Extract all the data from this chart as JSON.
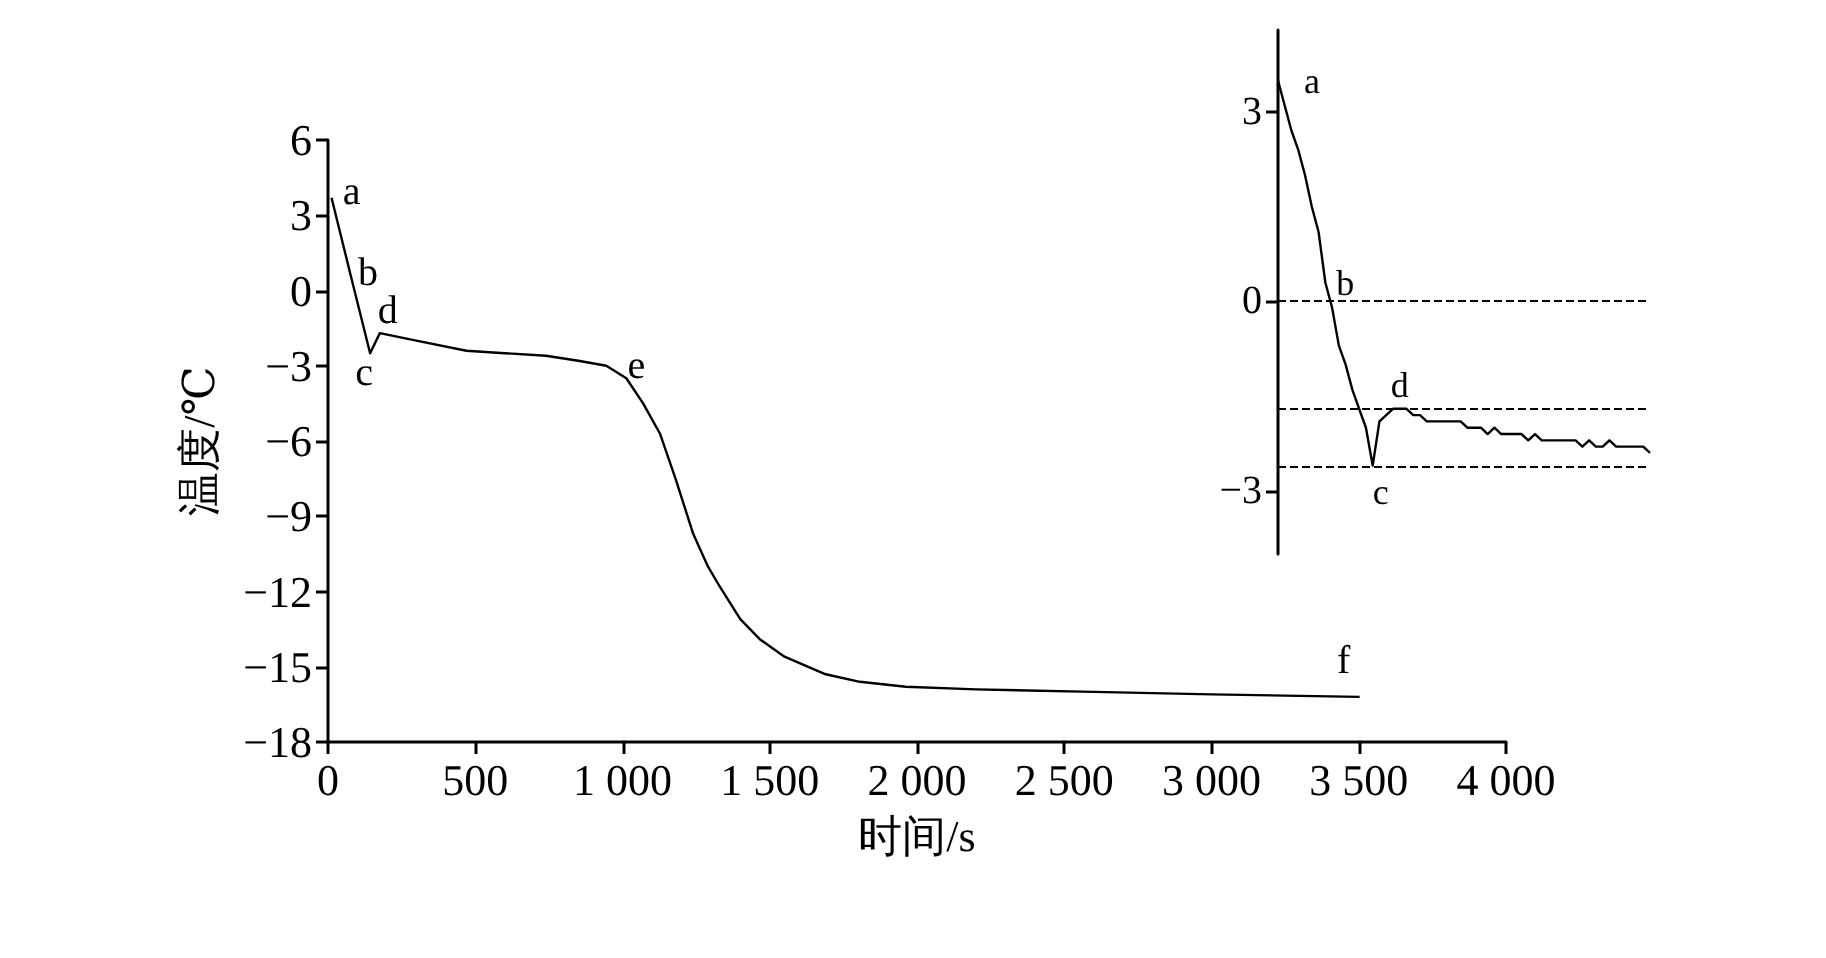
{
  "chart_data": [
    {
      "type": "line",
      "xlabel": "时间/s",
      "ylabel": "温度/℃",
      "grid": false,
      "marker": "none",
      "line_style": "solid",
      "xlim": [
        0,
        4000
      ],
      "xticks": [
        0,
        500,
        {
          "value": 1000,
          "label": "1 000"
        },
        {
          "value": 1500,
          "label": "1 500"
        },
        {
          "value": 2000,
          "label": "2 000"
        },
        {
          "value": 2500,
          "label": "2 500"
        },
        {
          "value": 3000,
          "label": "3 000"
        },
        {
          "value": 3500,
          "label": "3 500"
        },
        {
          "value": 4000,
          "label": "4 000"
        }
      ],
      "ylim": [
        -18,
        6
      ],
      "yticks": [
        6,
        3,
        0,
        {
          "value": -3,
          "label": "−3"
        },
        {
          "value": -6,
          "label": "−6"
        },
        {
          "value": -9,
          "label": "−9"
        },
        {
          "value": -12,
          "label": "−12"
        },
        {
          "value": -15,
          "label": "−15"
        },
        {
          "value": -18,
          "label": "−18"
        }
      ],
      "series": [
        {
          "color": "#000000",
          "x": [
            12,
            75,
            143,
            176,
            300,
            470,
            600,
            740,
            850,
            945,
            1013,
            1070,
            1127,
            1180,
            1240,
            1290,
            1330,
            1400,
            1466,
            1550,
            1690,
            1806,
            1962,
            2200,
            2600,
            3000,
            3503
          ],
          "values": [
            3.7,
            0.7,
            -2.5,
            -1.7,
            -2.0,
            -2.4,
            -2.5,
            -2.6,
            -2.8,
            -3.0,
            -3.5,
            -4.5,
            -5.7,
            -7.5,
            -9.7,
            -11.0,
            -11.8,
            -13.1,
            -13.9,
            -14.6,
            -15.3,
            -15.6,
            -15.8,
            -15.9,
            -16.0,
            -16.1,
            -16.2
          ]
        }
      ],
      "annotations": [
        {
          "text": "a",
          "x": 12,
          "y": 3.7
        },
        {
          "text": "b",
          "x": 75,
          "y": 0.7
        },
        {
          "text": "c",
          "x": 143,
          "y": -2.5
        },
        {
          "text": "d",
          "x": 176,
          "y": -1.7
        },
        {
          "text": "e",
          "x": 945,
          "y": -3.0
        },
        {
          "text": "f",
          "x": 3503,
          "y": -16.2
        }
      ]
    },
    {
      "type": "line",
      "grid": false,
      "marker": "none",
      "line_style": "solid",
      "tick_labels": "y",
      "categories": [
        null,
        null,
        null,
        null,
        null,
        null,
        null,
        null,
        null,
        null,
        null,
        null,
        null,
        null,
        null,
        null,
        null,
        null,
        null,
        null,
        null,
        null,
        null,
        null,
        null,
        null,
        null,
        null,
        null,
        null,
        null,
        null,
        null,
        null,
        null,
        null,
        null,
        null,
        null,
        null,
        null,
        null,
        null,
        null,
        null,
        null,
        null,
        null,
        null,
        null,
        null,
        null,
        null,
        null,
        null,
        null
      ],
      "ylim": [
        -4,
        4.3
      ],
      "yticks": [
        3,
        0,
        {
          "value": -3,
          "label": "−3"
        }
      ],
      "series": [
        {
          "color": "#000000",
          "values": [
            3.5,
            3.1,
            2.7,
            2.4,
            2.0,
            1.5,
            1.1,
            0.3,
            -0.1,
            -0.7,
            -1.0,
            -1.4,
            -1.7,
            -2.0,
            -2.6,
            -1.9,
            -1.8,
            -1.7,
            -1.7,
            -1.7,
            -1.8,
            -1.8,
            -1.9,
            -1.9,
            -1.9,
            -1.9,
            -1.9,
            -1.9,
            -2.0,
            -2.0,
            -2.0,
            -2.1,
            -2.0,
            -2.1,
            -2.1,
            -2.1,
            -2.1,
            -2.2,
            -2.1,
            -2.2,
            -2.2,
            -2.2,
            -2.2,
            -2.2,
            -2.2,
            -2.3,
            -2.2,
            -2.3,
            -2.3,
            -2.2,
            -2.3,
            -2.3,
            -2.3,
            -2.3,
            -2.3,
            -2.4
          ]
        }
      ],
      "ref_lines": [
        {
          "axis": "y",
          "value": 0,
          "line_style": "dashed"
        },
        {
          "axis": "y",
          "value": -1.7,
          "line_style": "dashed"
        },
        {
          "axis": "y",
          "value": -2.6,
          "line_style": "dashed"
        }
      ],
      "annotations": [
        "a",
        "b",
        "c",
        "d"
      ]
    }
  ]
}
